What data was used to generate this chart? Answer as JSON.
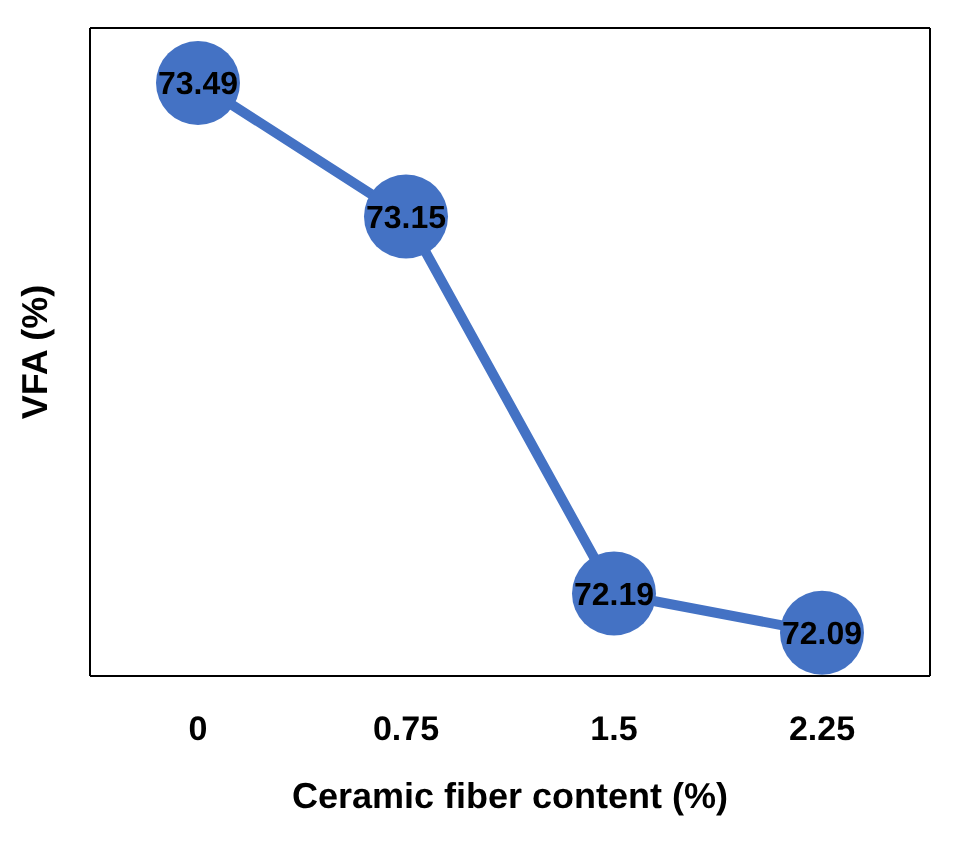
{
  "chart_data": {
    "type": "line",
    "xlabel": "Ceramic fiber content (%)",
    "ylabel": "VFA (%)",
    "categories": [
      "0",
      "0.75",
      "1.5",
      "2.25"
    ],
    "series": [
      {
        "color": "#4472c4",
        "values": [
          73.49,
          73.15,
          72.19,
          72.09
        ]
      }
    ],
    "ylim": [
      71.98,
      73.63
    ],
    "tick_labels": "x",
    "data_labels": true,
    "marker": "circle",
    "line_style": "solid",
    "grid": false,
    "legend": false
  }
}
